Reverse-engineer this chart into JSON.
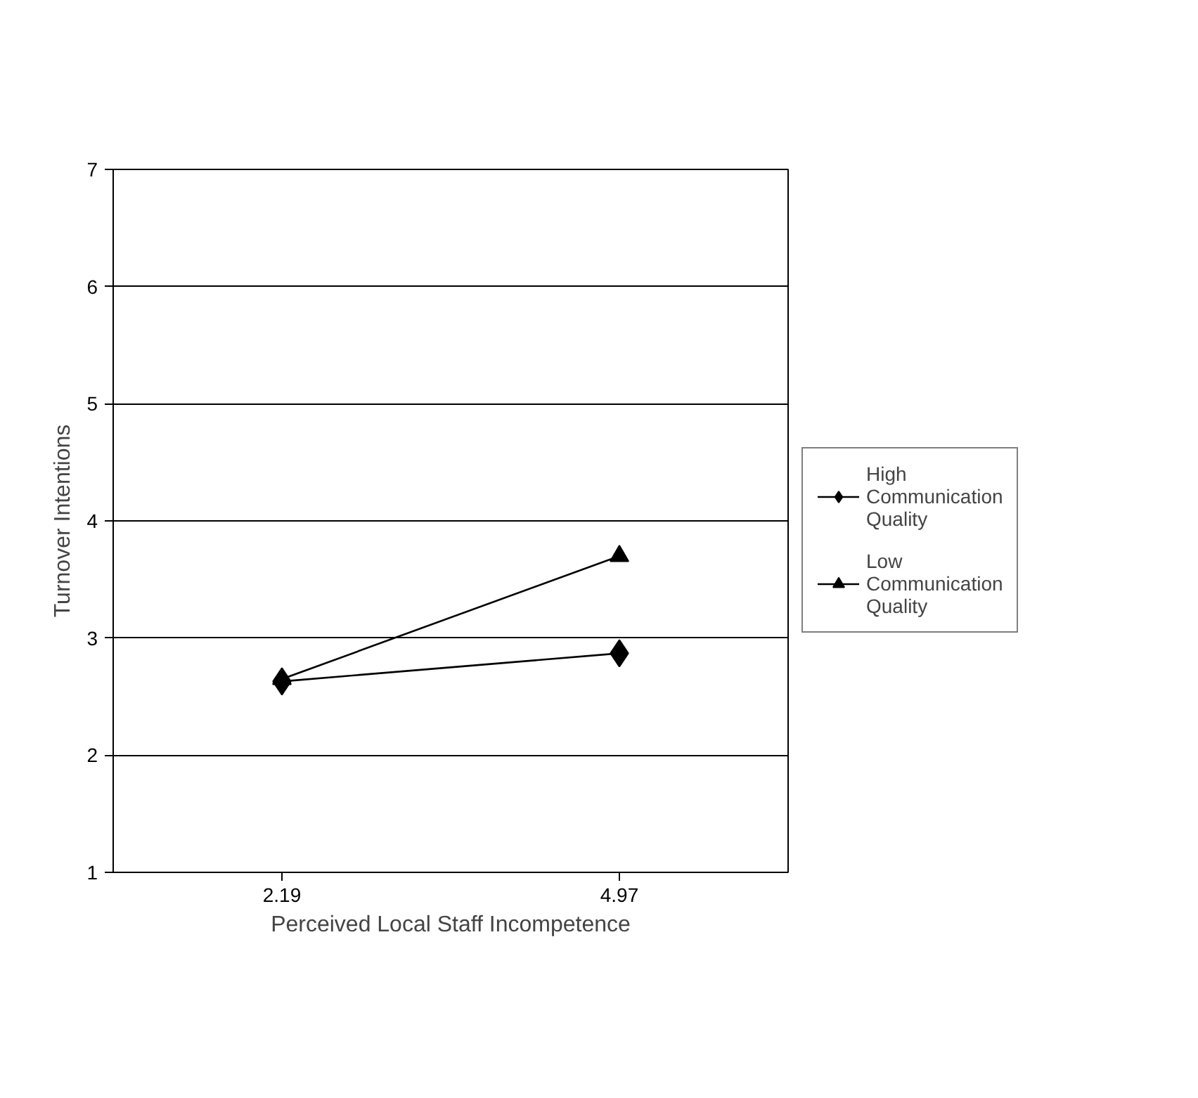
{
  "chart_data": {
    "type": "line",
    "xlabel": "Perceived Local Staff Incompetence",
    "ylabel": "Turnover Intentions",
    "categories": [
      "2.19",
      "4.97"
    ],
    "series": [
      {
        "name": "High Communication Quality",
        "color": "#000000",
        "marker": "diamond",
        "values": [
          2.63,
          2.87
        ]
      },
      {
        "name": "Low Communication Quality",
        "color": "#000000",
        "marker": "triangle",
        "values": [
          2.65,
          3.7
        ]
      }
    ],
    "ylim": [
      1,
      7
    ],
    "yticks": [
      1,
      2,
      3,
      4,
      5,
      6,
      7
    ],
    "grid": "y",
    "legend": "right",
    "line_style": "solid"
  }
}
